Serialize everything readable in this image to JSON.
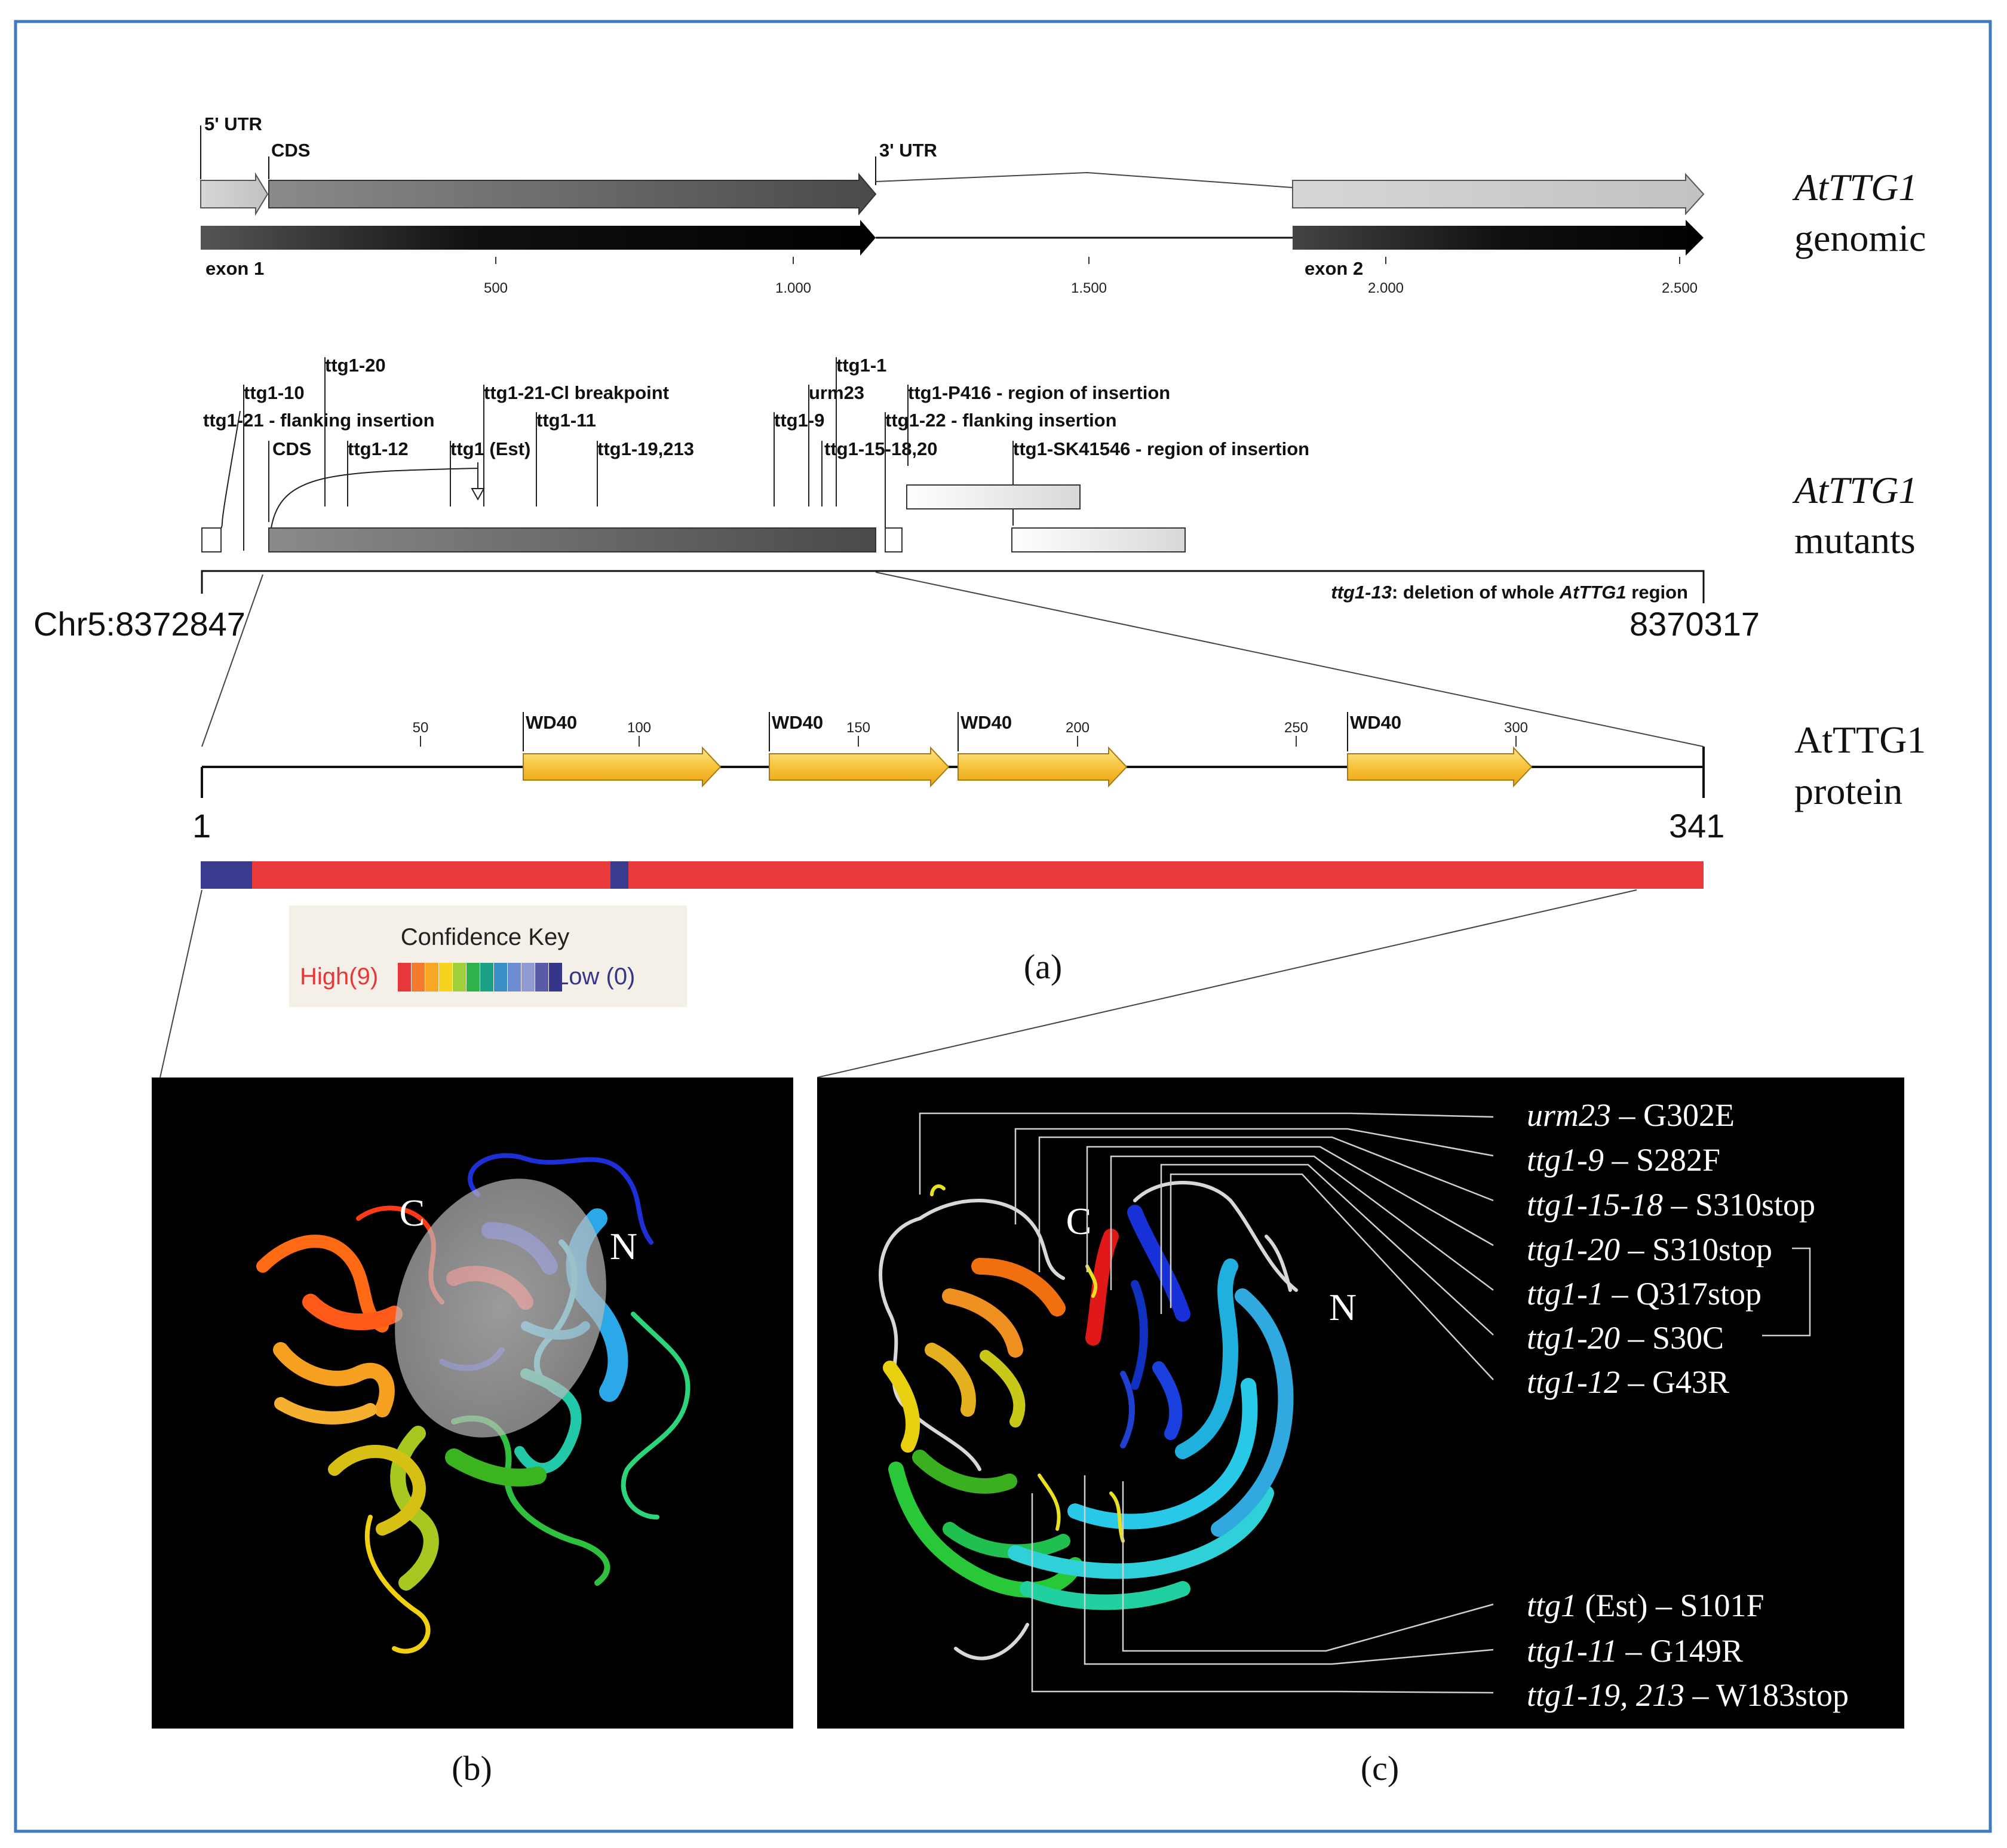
{
  "genomic": {
    "utr5_label": "5' UTR",
    "cds_label": "CDS",
    "utr3_label": "3' UTR",
    "exon1_label": "exon 1",
    "exon2_label": "exon 2",
    "ticks": [
      "500",
      "1.000",
      "1.500",
      "2.000",
      "2.500"
    ],
    "track_name_italic": "AtTTG1",
    "track_name_rest": "genomic"
  },
  "mutants": {
    "labels": {
      "ttg1_20": "ttg1-20",
      "ttg1_10": "ttg1-10",
      "ttg1_21": "ttg1-21 - flanking insertion",
      "cds": "CDS",
      "ttg1_12": "ttg1-12",
      "ttg1_21_cl": "ttg1-21-Cl breakpoint",
      "ttg1_11": "ttg1-11",
      "ttg1_est": "ttg1 (Est)",
      "ttg1_19": "ttg1-19,213",
      "ttg1_1": "ttg1-1",
      "urm23": "urm23",
      "ttg1_9": "ttg1-9",
      "ttg1_15": "ttg1-15-18,20",
      "p416": "ttg1-P416 - region of insertion",
      "ttg1_22": "ttg1-22 - flanking insertion",
      "sk": "ttg1-SK41546 - region of insertion"
    },
    "deletion_italic": "ttg1-13",
    "deletion_rest": ": deletion of whole ",
    "deletion_gene": "AtTTG1",
    "deletion_end": " region",
    "chr_start": "Chr5:8372847",
    "chr_end": "8370317",
    "track_name_italic": "AtTTG1",
    "track_name_rest": "mutants"
  },
  "protein": {
    "domain_label": "WD40",
    "ticks": [
      "50",
      "100",
      "150",
      "200",
      "250",
      "300"
    ],
    "start": "1",
    "end": "341",
    "track_name_line1": "AtTTG1",
    "track_name_line2": "protein"
  },
  "confidence": {
    "title": "Confidence Key",
    "high": "High(9)",
    "low": "Low (0)",
    "colors": [
      "#e8373a",
      "#f47a30",
      "#f6a824",
      "#f5d31f",
      "#9fcf3a",
      "#2eb24a",
      "#1aa085",
      "#3b8fc7",
      "#6c8ed0",
      "#8f9bd2",
      "#5a5aa8",
      "#35358a"
    ]
  },
  "captions": {
    "a": "(a)",
    "b": "(b)",
    "c": "(c)"
  },
  "structure": {
    "label_c": "C",
    "label_n": "N",
    "annotations": [
      {
        "allele": "urm23",
        "change": " – G302E"
      },
      {
        "allele": "ttg1-9",
        "change": " – S282F"
      },
      {
        "allele": "ttg1-15-18",
        "change": " – S310stop"
      },
      {
        "allele": "ttg1-20",
        "change": " – S310stop"
      },
      {
        "allele": "ttg1-1",
        "change": " – Q317stop"
      },
      {
        "allele": "ttg1-20",
        "change": " – S30C"
      },
      {
        "allele": "ttg1-12",
        "change": " – G43R"
      },
      {
        "allele": "ttg1",
        "change": " (Est) – S101F"
      },
      {
        "allele": "ttg1-11",
        "change": " – G149R"
      },
      {
        "allele": "ttg1-19, 213",
        "change": " – W183stop"
      }
    ]
  }
}
